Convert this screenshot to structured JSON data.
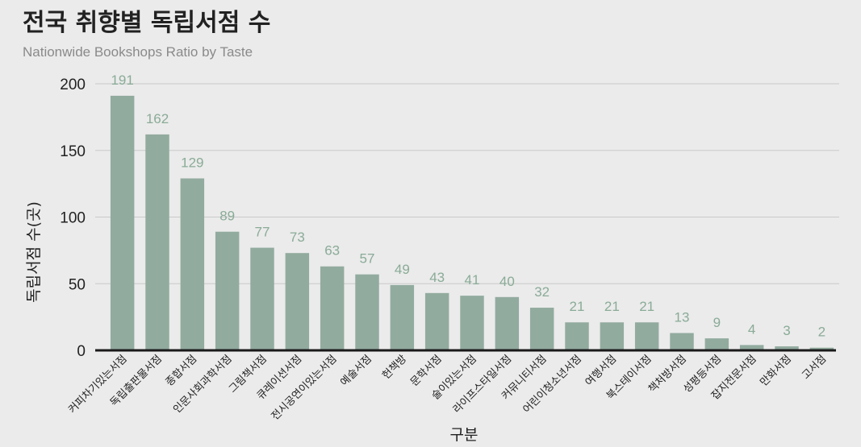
{
  "chart_data": {
    "type": "bar",
    "title": "전국 취향별 독립서점 수",
    "subtitle": "Nationwide Bookshops Ratio by Taste",
    "xlabel": "구분",
    "ylabel": "독립서점 수(곳)",
    "ylim": [
      0,
      200
    ],
    "yticks": [
      0,
      50,
      100,
      150,
      200
    ],
    "grid": true,
    "legend": "none",
    "bar_color": "#92ab9f",
    "label_color": "#8aab97",
    "categories": [
      "커피차기있는서점",
      "독립출판물서점",
      "종합서점",
      "인문사회과학서점",
      "그림책서점",
      "큐레이션서점",
      "전시공연이있는서점",
      "예술서점",
      "헌책방",
      "문학서점",
      "술이있는서점",
      "라이프스타일서점",
      "커뮤니티서점",
      "어린이청소년서점",
      "여행서점",
      "북스테이서점",
      "책처방서점",
      "성평등서점",
      "잡지전문서점",
      "만화서점",
      "고서점"
    ],
    "values": [
      191,
      162,
      129,
      89,
      77,
      73,
      63,
      57,
      49,
      43,
      41,
      40,
      32,
      21,
      21,
      21,
      13,
      9,
      4,
      3,
      2
    ]
  }
}
